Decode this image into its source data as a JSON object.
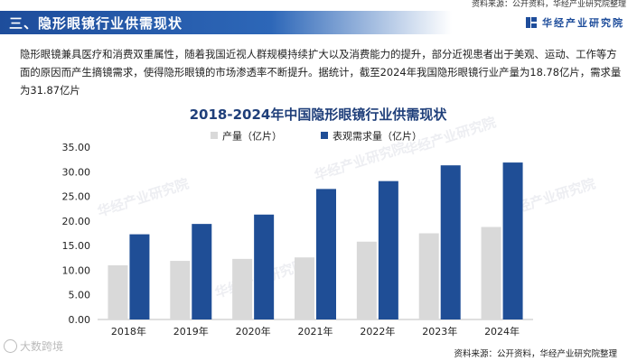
{
  "source_top": "资料来源：公开资料，华经产业研究院整理",
  "header": {
    "title": "三、隐形眼镜行业供需现状",
    "brand": "华经产业研究院"
  },
  "paragraph": "隐形眼镜兼具医疗和消费双重属性，随着我国近视人群规模持续扩大以及消费能力的提升，部分近视患者出于美观、运动、工作等方面的原因而产生摘镜需求，使得隐形眼镜的市场渗透率不断提升。据统计，截至2024年我国隐形眼镜行业产量为18.78亿片，需求量为31.87亿片",
  "source_bottom": "资料来源：公开资料，华经产业研究院整理",
  "watermark_corner": "大数跨境",
  "watermark_text": "华经产业研究院",
  "colors": {
    "header": "#1e4d9b",
    "production": "#d9d9d9",
    "demand": "#1f4e96"
  },
  "chart_data": {
    "type": "bar",
    "title": "2018-2024年中国隐形眼镜行业供需现状",
    "categories": [
      "2018年",
      "2019年",
      "2020年",
      "2021年",
      "2022年",
      "2023年",
      "2024年"
    ],
    "series": [
      {
        "name": "产量（亿片）",
        "values": [
          11.0,
          11.9,
          12.3,
          12.6,
          15.8,
          17.5,
          18.78
        ]
      },
      {
        "name": "表观需求量（亿片）",
        "values": [
          17.3,
          19.4,
          21.3,
          26.5,
          28.1,
          31.3,
          31.87
        ]
      }
    ],
    "yticks": [
      "0.00",
      "5.00",
      "10.00",
      "15.00",
      "20.00",
      "25.00",
      "30.00",
      "35.00"
    ],
    "ylim": [
      0,
      35
    ],
    "legend": "top-center",
    "grid": false
  }
}
